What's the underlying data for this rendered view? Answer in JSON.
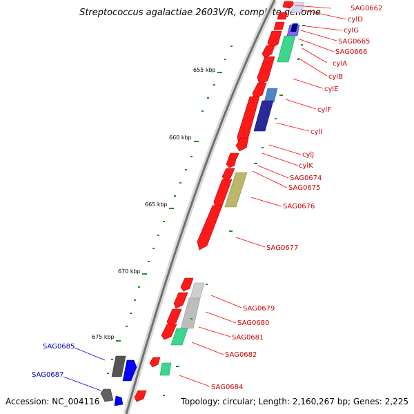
{
  "title": "Streptococcus agalactiae 2603V/R, complete genome",
  "footer": {
    "accession": "Accession: NC_004116",
    "topology": "Topology: circular; Length: 2,160,267 bp; Genes: 2,225"
  },
  "scale_labels": [
    "655 kbp",
    "660 kbp",
    "665 kbp",
    "670 kbp",
    "675 kbp"
  ],
  "gene_labels_right": [
    "SAG0662",
    "cylD",
    "cylG",
    "SAG0665",
    "SAG0666",
    "cylA",
    "cylB",
    "cylE",
    "cylF",
    "cylI",
    "cylJ",
    "cylK",
    "SAG0674",
    "SAG0675",
    "SAG0676",
    "SAG0677",
    "SAG0679",
    "SAG0680",
    "SAG0681",
    "SAG0682",
    "SAG0684"
  ],
  "gene_labels_left": [
    "SAG0685",
    "SAG0687"
  ],
  "colors": {
    "forward_strand": "#ff0000",
    "reverse_strand": "#0000ff",
    "right_label": "#cc0000",
    "left_label": "#0000cc",
    "scale_tick": "#228b22",
    "backbone": "#808080"
  }
}
